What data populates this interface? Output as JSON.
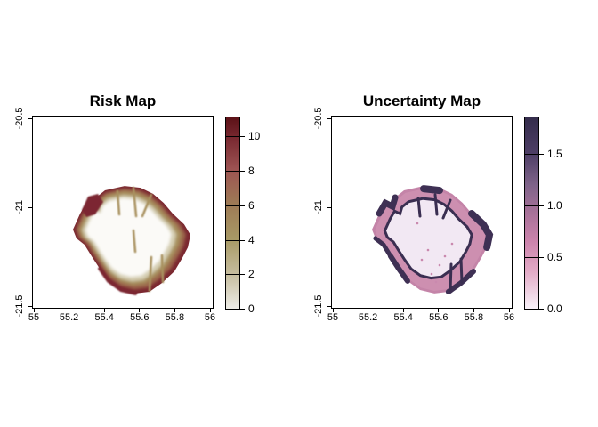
{
  "figure": {
    "background": "#ffffff"
  },
  "chart_data": {
    "type": "heatmap",
    "layout": "two side-by-side raster map panels (R-style plot), each with a vertical colorbar legend on its right; white figure background; black plot box and ticks",
    "axes": {
      "x_range": [
        54.995,
        56.015
      ],
      "y_range": [
        -20.48,
        -21.565
      ],
      "x_tick_values": [
        55,
        55.2,
        55.4,
        55.6,
        55.8,
        56
      ],
      "x_tick_labels": [
        "55",
        "55.2",
        "55.4",
        "55.6",
        "55.8",
        "56"
      ],
      "y_tick_values": [
        -20.5,
        -21,
        -21.5
      ],
      "y_tick_labels": [
        "-20.5",
        "-21",
        "-21.5"
      ]
    },
    "panels": [
      {
        "title": "Risk Map",
        "colorbar": {
          "tick_labels": [
            "0",
            "2",
            "4",
            "6",
            "8",
            "10"
          ],
          "tick_values": [
            0,
            2,
            4,
            6,
            8,
            10
          ],
          "range": [
            0,
            11.1
          ],
          "gradient_stops": [
            {
              "at": 0.0,
              "color": "#edece6"
            },
            {
              "at": 0.18,
              "color": "#c6bd9e"
            },
            {
              "at": 0.36,
              "color": "#a89a66"
            },
            {
              "at": 0.55,
              "color": "#9e7a55"
            },
            {
              "at": 0.73,
              "color": "#9d5352"
            },
            {
              "at": 0.88,
              "color": "#7c2c33"
            },
            {
              "at": 1.0,
              "color": "#5c1117"
            }
          ]
        },
        "value_pattern": "high risk (dark red ~10) along the island coastline, decreasing through brown/khaki (4-6) inland to near 0 (white) in the island interior; khaki valley fingers reach inward from the north and south coasts",
        "island_style": {
          "coast": "#7b2830",
          "band1": "#9b684c",
          "band2": "#a8915e",
          "band3": "#d6cfb4",
          "interior": "#fbfaf7",
          "finger": "#a8915e"
        }
      },
      {
        "title": "Uncertainty Map",
        "colorbar": {
          "tick_labels": [
            "0.0",
            "0.5",
            "1.0",
            "1.5"
          ],
          "tick_values": [
            0,
            0.5,
            1,
            1.5
          ],
          "range": [
            0,
            1.85
          ],
          "gradient_stops": [
            {
              "at": 0.0,
              "color": "#f8f1f8"
            },
            {
              "at": 0.2,
              "color": "#e2a9c5"
            },
            {
              "at": 0.35,
              "color": "#cc84ac"
            },
            {
              "at": 0.5,
              "color": "#a87299"
            },
            {
              "at": 0.65,
              "color": "#7e6389"
            },
            {
              "at": 0.81,
              "color": "#4e3f66"
            },
            {
              "at": 1.0,
              "color": "#342c4b"
            }
          ]
        },
        "value_pattern": "moderate uncertainty (pink ~0.5-0.9) band around the coast with dark purple patches (~1.8) on the NW, N, E, SW and W outer edges; a dark purple ring (~1.7) separates the coastal band from the near-zero pale interior which contains scattered pink speckles",
        "island_style": {
          "coast": "#c484a8",
          "band1": "#cd8fb0",
          "patch": "#3e3054",
          "ring": "#3a2e51",
          "interior": "#f2e8f3",
          "speckle": "#ca89ae"
        }
      }
    ],
    "island_outline_lonlat": [
      [
        55.222,
        -21.121
      ],
      [
        55.263,
        -21.03
      ],
      [
        55.298,
        -20.97
      ],
      [
        55.339,
        -20.99
      ],
      [
        55.354,
        -20.939
      ],
      [
        55.404,
        -20.899
      ],
      [
        55.515,
        -20.874
      ],
      [
        55.606,
        -20.884
      ],
      [
        55.677,
        -20.919
      ],
      [
        55.737,
        -20.97
      ],
      [
        55.788,
        -21.03
      ],
      [
        55.853,
        -21.091
      ],
      [
        55.889,
        -21.151
      ],
      [
        55.874,
        -21.222
      ],
      [
        55.843,
        -21.282
      ],
      [
        55.798,
        -21.358
      ],
      [
        55.727,
        -21.424
      ],
      [
        55.656,
        -21.474
      ],
      [
        55.576,
        -21.484
      ],
      [
        55.495,
        -21.464
      ],
      [
        55.424,
        -21.413
      ],
      [
        55.374,
        -21.343
      ],
      [
        55.328,
        -21.272
      ],
      [
        55.288,
        -21.207
      ],
      [
        55.242,
        -21.171
      ]
    ]
  }
}
